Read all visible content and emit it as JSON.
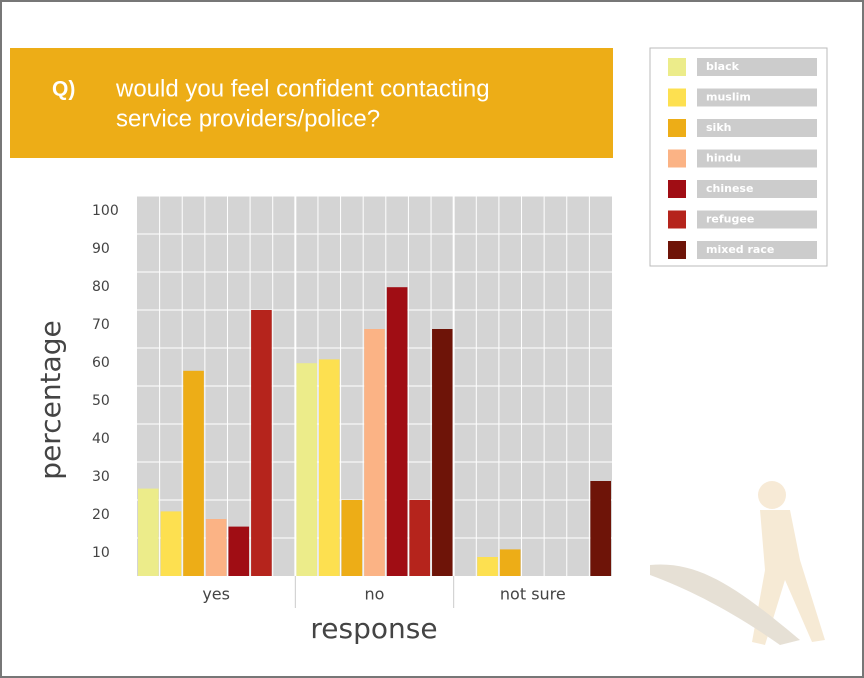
{
  "chart_data": {
    "type": "bar",
    "title_prefix": "Q)",
    "title_lines": [
      "would you feel confident contacting",
      "service providers/police?"
    ],
    "x_label": "response",
    "y_label": "percentage",
    "categories": [
      "yes",
      "no",
      "not sure"
    ],
    "series": [
      {
        "name": "black",
        "color": "#ecec8a",
        "values": [
          23,
          56,
          0
        ]
      },
      {
        "name": "muslim",
        "color": "#fde050",
        "values": [
          17,
          57,
          5
        ]
      },
      {
        "name": "sikh",
        "color": "#edad17",
        "values": [
          54,
          20,
          7
        ]
      },
      {
        "name": "hindu",
        "color": "#fbb385",
        "values": [
          15,
          65,
          0
        ]
      },
      {
        "name": "chinese",
        "color": "#a00d14",
        "values": [
          13,
          76,
          0
        ]
      },
      {
        "name": "refugee",
        "color": "#b5241c",
        "values": [
          70,
          20,
          0
        ]
      },
      {
        "name": "mixed race",
        "color": "#6e1408",
        "values": [
          0,
          65,
          25
        ]
      }
    ],
    "ylim": [
      0,
      100
    ],
    "yticks": [
      10,
      20,
      30,
      40,
      50,
      60,
      70,
      80,
      90,
      100
    ],
    "grid": true,
    "legend": "top-right"
  }
}
